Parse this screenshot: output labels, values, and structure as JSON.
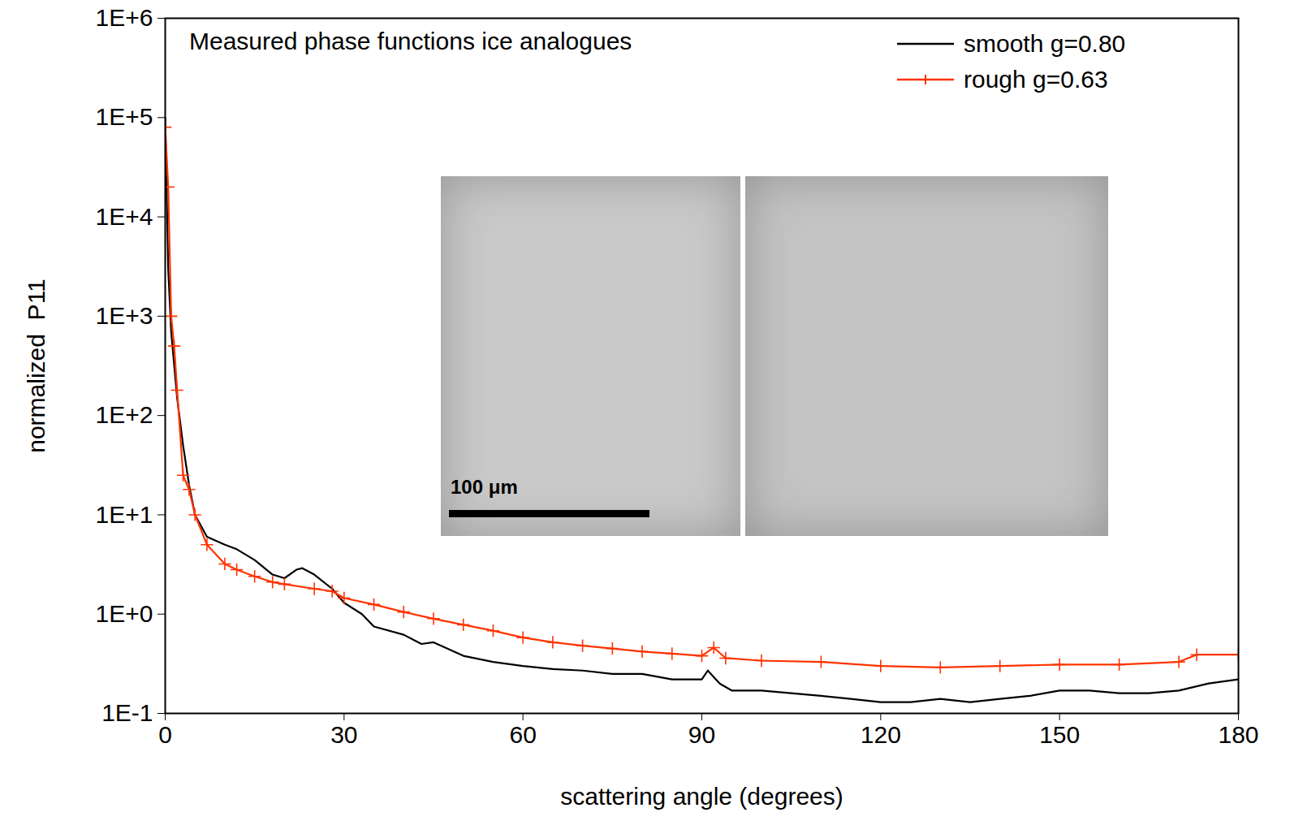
{
  "chart_data": {
    "type": "line",
    "title": "Measured phase functions ice analogues",
    "xlabel": "scattering angle (degrees)",
    "ylabel": "normalized  P11",
    "log": "y",
    "xlim": [
      0,
      180
    ],
    "ylim": [
      0.1,
      1000000
    ],
    "xticks": [
      0,
      30,
      60,
      90,
      120,
      150,
      180
    ],
    "yticks": [
      {
        "value": 0.1,
        "label": "1E-1"
      },
      {
        "value": 1,
        "label": "1E+0"
      },
      {
        "value": 10,
        "label": "1E+1"
      },
      {
        "value": 100,
        "label": "1E+2"
      },
      {
        "value": 1000,
        "label": "1E+3"
      },
      {
        "value": 10000,
        "label": "1E+4"
      },
      {
        "value": 100000,
        "label": "1E+5"
      },
      {
        "value": 1000000,
        "label": "1E+6"
      }
    ],
    "legend": "top-right",
    "annotations": [
      "100 μm"
    ],
    "series": [
      {
        "name": "smooth g=0.80",
        "color": "#000000",
        "marker": "none",
        "line_style": "solid",
        "x": [
          0,
          0.5,
          1,
          2,
          3,
          4,
          5,
          7,
          10,
          12,
          15,
          18,
          20,
          22,
          23,
          25,
          28,
          30,
          33,
          35,
          40,
          43,
          45,
          50,
          55,
          60,
          65,
          70,
          75,
          80,
          85,
          90,
          91,
          93,
          95,
          100,
          105,
          110,
          115,
          120,
          125,
          130,
          135,
          140,
          145,
          150,
          155,
          160,
          165,
          170,
          175,
          180
        ],
        "values": [
          100000,
          3000,
          700,
          150,
          50,
          20,
          10,
          6,
          5,
          4.5,
          3.5,
          2.5,
          2.3,
          2.8,
          2.9,
          2.5,
          1.8,
          1.3,
          1.0,
          0.75,
          0.62,
          0.5,
          0.52,
          0.38,
          0.33,
          0.3,
          0.28,
          0.27,
          0.25,
          0.25,
          0.22,
          0.22,
          0.27,
          0.2,
          0.17,
          0.17,
          0.16,
          0.15,
          0.14,
          0.13,
          0.13,
          0.14,
          0.13,
          0.14,
          0.15,
          0.17,
          0.17,
          0.16,
          0.16,
          0.17,
          0.2,
          0.22
        ]
      },
      {
        "name": "rough g=0.63",
        "color": "#ff3300",
        "marker": "plus",
        "line_style": "solid",
        "x": [
          0,
          0.5,
          1,
          1.5,
          2,
          3,
          4,
          5,
          7,
          10,
          12,
          15,
          18,
          20,
          25,
          28,
          30,
          35,
          40,
          45,
          50,
          55,
          60,
          65,
          70,
          75,
          80,
          85,
          90,
          92,
          94,
          100,
          110,
          120,
          130,
          140,
          150,
          160,
          170,
          173,
          180
        ],
        "values": [
          80000,
          20000,
          1000,
          500,
          180,
          25,
          18,
          10,
          5,
          3.2,
          2.8,
          2.4,
          2.1,
          2.0,
          1.8,
          1.7,
          1.45,
          1.25,
          1.05,
          0.9,
          0.78,
          0.68,
          0.58,
          0.52,
          0.48,
          0.45,
          0.42,
          0.4,
          0.38,
          0.46,
          0.36,
          0.34,
          0.33,
          0.3,
          0.29,
          0.3,
          0.31,
          0.31,
          0.33,
          0.39,
          0.39
        ]
      }
    ]
  }
}
